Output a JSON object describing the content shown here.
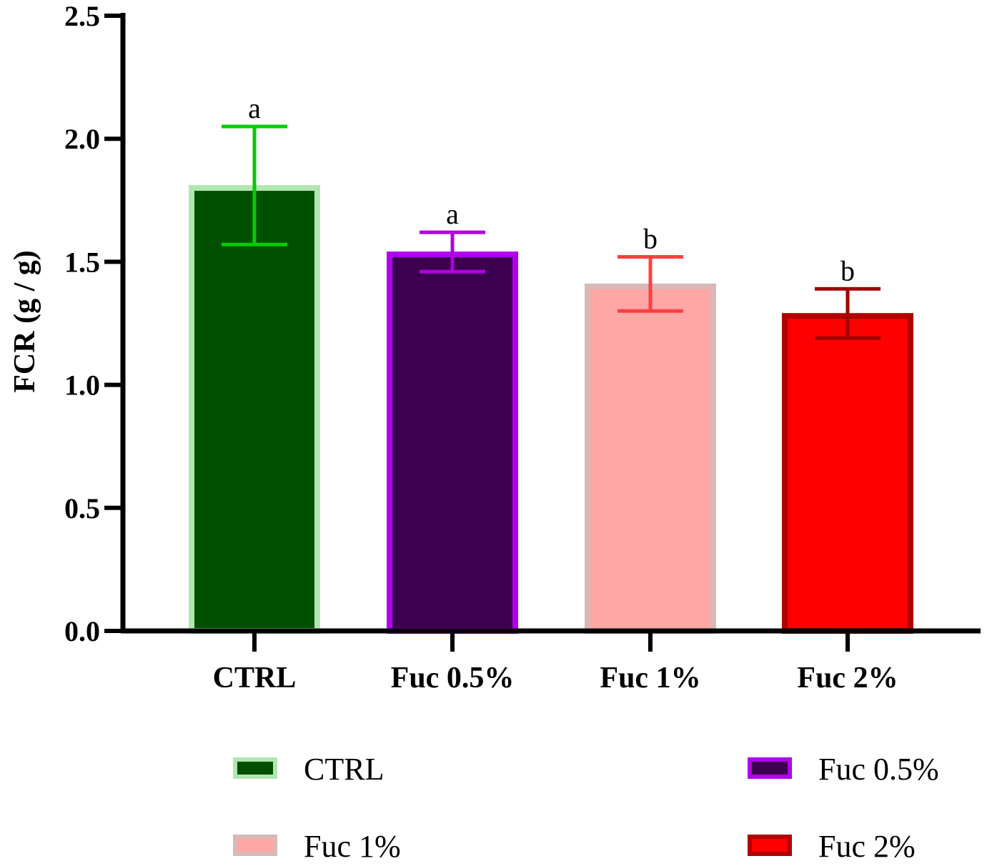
{
  "chart_data": {
    "type": "bar",
    "title": "",
    "xlabel": "",
    "ylabel": "FCR (g / g)",
    "ylim": [
      0,
      2.5
    ],
    "yticks": [
      "0.0",
      "0.5",
      "1.0",
      "1.5",
      "2.0",
      "2.5"
    ],
    "ytick_values": [
      0,
      0.5,
      1.0,
      1.5,
      2.0,
      2.5
    ],
    "categories": [
      "CTRL",
      "Fuc 0.5%",
      "Fuc 1%",
      "Fuc 2%"
    ],
    "values": [
      1.8,
      1.53,
      1.4,
      1.28
    ],
    "error_upper": [
      2.05,
      1.62,
      1.52,
      1.39
    ],
    "error_lower": [
      1.57,
      1.46,
      1.3,
      1.19
    ],
    "significance_letters": [
      "a",
      "a",
      "b",
      "b"
    ],
    "fill_colors": [
      "#005000",
      "#3d004f",
      "#ffa6a6",
      "#ff0000"
    ],
    "edge_colors": [
      "#b2e6b0",
      "#b000f0",
      "#d9b8b8",
      "#b00000"
    ],
    "error_colors": [
      "#00cc00",
      "#b000e0",
      "#ff4040",
      "#a00000"
    ],
    "legend": {
      "placement": "bottom",
      "entries": [
        "CTRL",
        "Fuc 0.5%",
        "Fuc 1%",
        "Fuc 2%"
      ]
    },
    "grid": false
  }
}
